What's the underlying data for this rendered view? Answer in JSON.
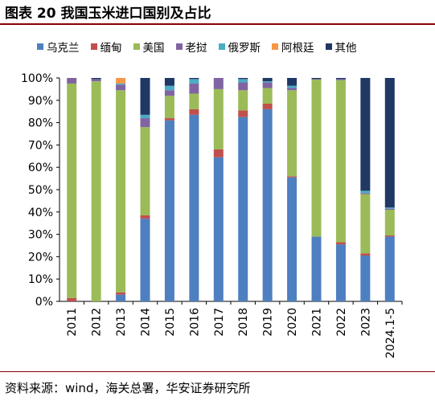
{
  "title": "图表 20  我国玉米进口国别及占比",
  "source": "资料来源：wind，海关总署，华安证券研究所",
  "chart_data": {
    "type": "bar",
    "stacked": true,
    "percent": true,
    "categories": [
      "2011",
      "2012",
      "2013",
      "2014",
      "2015",
      "2016",
      "2017",
      "2018",
      "2019",
      "2020",
      "2021",
      "2022",
      "2023",
      "2024.1-5"
    ],
    "yticks": [
      "0%",
      "10%",
      "20%",
      "30%",
      "40%",
      "50%",
      "60%",
      "70%",
      "80%",
      "90%",
      "100%"
    ],
    "ylim": [
      0,
      100
    ],
    "legend_position": "top",
    "series": [
      {
        "name": "乌克兰",
        "color": "#4e7fc0",
        "values": [
          0,
          0,
          3,
          37,
          81,
          83.5,
          64.5,
          82.5,
          86,
          55.5,
          29,
          25.5,
          20.5,
          29
        ]
      },
      {
        "name": "缅甸",
        "color": "#c0504d",
        "values": [
          1.5,
          0,
          1,
          1.5,
          1,
          2.5,
          3.5,
          3,
          2.5,
          0.5,
          0,
          1,
          1,
          0.5
        ]
      },
      {
        "name": "美国",
        "color": "#9bbb59",
        "values": [
          96,
          98.5,
          90.5,
          39.5,
          10,
          7,
          27,
          9,
          7,
          38.5,
          70.3,
          72.5,
          26.5,
          11.5
        ]
      },
      {
        "name": "老挝",
        "color": "#8064a2",
        "values": [
          2.5,
          1,
          2.5,
          4,
          2.5,
          4.5,
          5,
          3.5,
          2.5,
          1,
          0.2,
          0.5,
          0.5,
          0.5
        ]
      },
      {
        "name": "俄罗斯",
        "color": "#4bacc6",
        "values": [
          0,
          0,
          0.5,
          1.5,
          2,
          2,
          0,
          1.5,
          0.5,
          1,
          0,
          0,
          1,
          0.5
        ]
      },
      {
        "name": "阿根廷",
        "color": "#f79646",
        "values": [
          0,
          0,
          2.5,
          0,
          0,
          0,
          0,
          0,
          0,
          0,
          0,
          0,
          0,
          0
        ]
      },
      {
        "name": "其他",
        "color": "#1f3864",
        "values": [
          0,
          0.5,
          0,
          16.5,
          3.5,
          0.5,
          0,
          0.5,
          1.5,
          3.5,
          0.5,
          0.5,
          50.5,
          58
        ]
      }
    ]
  }
}
